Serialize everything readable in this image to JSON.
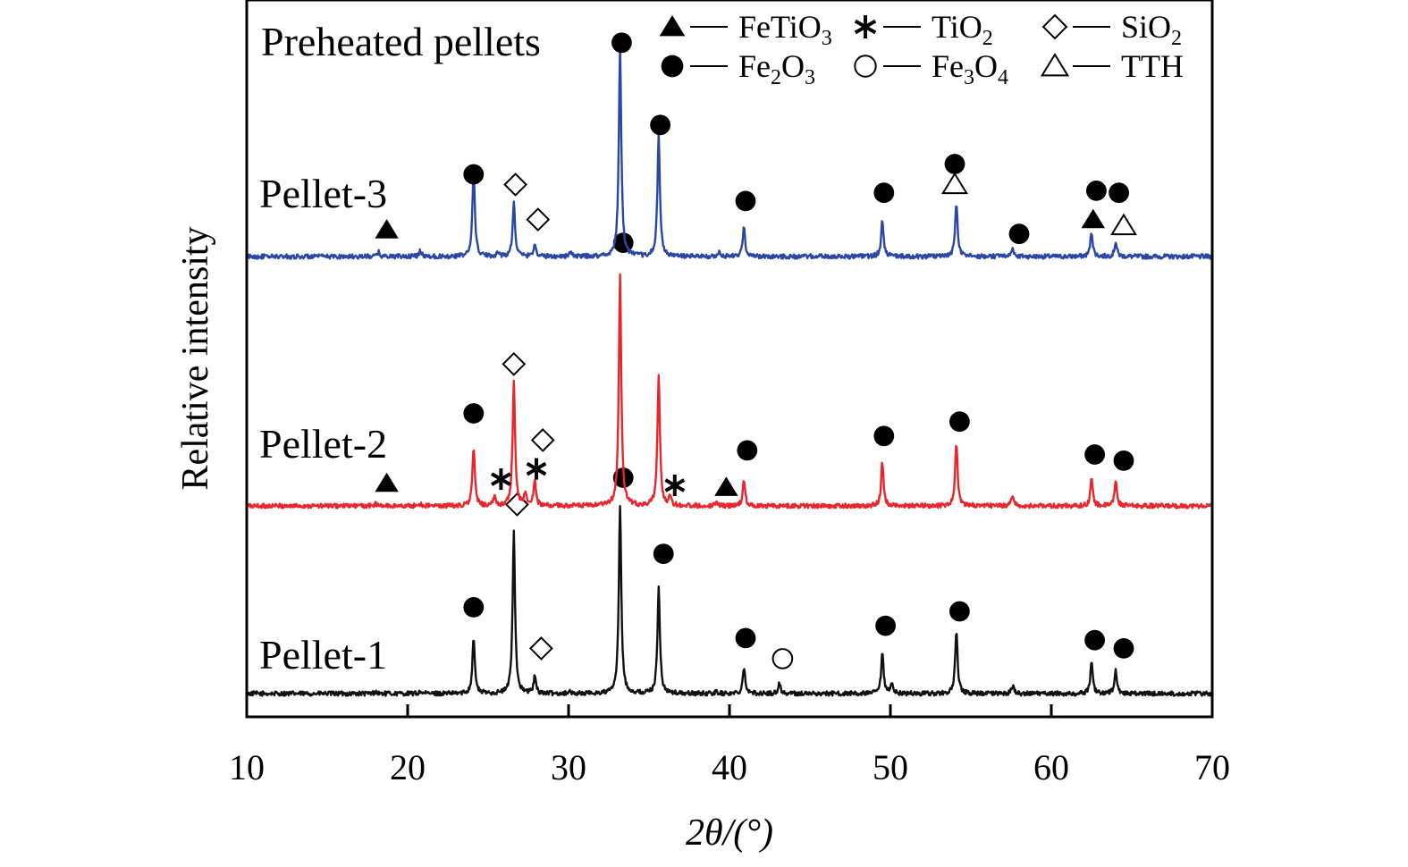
{
  "chart_data": {
    "type": "line",
    "title": "Preheated pellets",
    "xlabel": "2θ/(°)",
    "ylabel": "Relative intensity",
    "xlim": [
      10,
      70
    ],
    "xticks": [
      10,
      20,
      30,
      40,
      50,
      60,
      70
    ],
    "xtick_labels": [
      "10",
      "20",
      "30",
      "40",
      "50",
      "60",
      "70"
    ],
    "y_ticks_shown": false,
    "grid": false,
    "legend_position": "top-right",
    "legend": [
      {
        "marker": "filled-triangle",
        "label": "FeTiO",
        "sub": "3"
      },
      {
        "marker": "asterisk",
        "label": "TiO",
        "sub": "2"
      },
      {
        "marker": "open-diamond",
        "label": "SiO",
        "sub": "2"
      },
      {
        "marker": "filled-circle",
        "label": "Fe",
        "sub": "2",
        "label2": "O",
        "sub2": "3"
      },
      {
        "marker": "open-circle",
        "label": "Fe",
        "sub": "3",
        "label2": "O",
        "sub2": "4"
      },
      {
        "marker": "open-triangle",
        "label": "TTH"
      }
    ],
    "series": [
      {
        "name": "Pellet-1",
        "color": "#111111",
        "baseline": 0.0,
        "peaks": [
          [
            18.0,
            0.01
          ],
          [
            20.8,
            0.01
          ],
          [
            24.1,
            0.27
          ],
          [
            26.6,
            0.79
          ],
          [
            27.9,
            0.08
          ],
          [
            30.0,
            0.01
          ],
          [
            33.2,
            0.92
          ],
          [
            35.6,
            0.52
          ],
          [
            39.2,
            0.01
          ],
          [
            40.9,
            0.13
          ],
          [
            43.1,
            0.05
          ],
          [
            49.5,
            0.19
          ],
          [
            50.1,
            0.05
          ],
          [
            54.1,
            0.3
          ],
          [
            57.6,
            0.04
          ],
          [
            62.5,
            0.15
          ],
          [
            64.0,
            0.11
          ]
        ],
        "markers": [
          {
            "shape": "filled-circle",
            "x": 24.1,
            "y": 0.42
          },
          {
            "shape": "open-diamond",
            "x": 26.8,
            "y": 0.92
          },
          {
            "shape": "open-diamond",
            "x": 28.3,
            "y": 0.22
          },
          {
            "shape": "filled-circle",
            "x": 33.4,
            "y": 1.05
          },
          {
            "shape": "filled-circle",
            "x": 35.9,
            "y": 0.68
          },
          {
            "shape": "filled-circle",
            "x": 41.0,
            "y": 0.27
          },
          {
            "shape": "open-circle",
            "x": 43.3,
            "y": 0.17
          },
          {
            "shape": "filled-circle",
            "x": 49.7,
            "y": 0.33
          },
          {
            "shape": "filled-circle",
            "x": 54.3,
            "y": 0.4
          },
          {
            "shape": "filled-circle",
            "x": 62.7,
            "y": 0.26
          },
          {
            "shape": "filled-circle",
            "x": 64.5,
            "y": 0.22
          }
        ]
      },
      {
        "name": "Pellet-2",
        "color": "#e8262c",
        "baseline": 0.0,
        "peaks": [
          [
            18.0,
            0.01
          ],
          [
            20.8,
            0.01
          ],
          [
            24.1,
            0.28
          ],
          [
            25.4,
            0.04
          ],
          [
            26.6,
            0.6
          ],
          [
            27.3,
            0.06
          ],
          [
            27.9,
            0.12
          ],
          [
            33.2,
            1.12
          ],
          [
            35.6,
            0.64
          ],
          [
            36.3,
            0.04
          ],
          [
            39.2,
            0.02
          ],
          [
            40.9,
            0.12
          ],
          [
            49.5,
            0.21
          ],
          [
            54.1,
            0.31
          ],
          [
            57.6,
            0.05
          ],
          [
            62.5,
            0.13
          ],
          [
            64.0,
            0.12
          ]
        ],
        "markers": [
          {
            "shape": "filled-triangle",
            "x": 18.7,
            "y": 0.11
          },
          {
            "shape": "filled-circle",
            "x": 24.1,
            "y": 0.45
          },
          {
            "shape": "asterisk",
            "x": 25.8,
            "y": 0.13
          },
          {
            "shape": "open-diamond",
            "x": 26.6,
            "y": 0.69
          },
          {
            "shape": "asterisk",
            "x": 28.0,
            "y": 0.18
          },
          {
            "shape": "open-diamond",
            "x": 28.4,
            "y": 0.32
          },
          {
            "shape": "filled-circle",
            "x": 33.4,
            "y": 1.28
          },
          {
            "shape": "asterisk",
            "x": 36.6,
            "y": 0.1
          },
          {
            "shape": "filled-triangle",
            "x": 39.8,
            "y": 0.09
          },
          {
            "shape": "filled-circle",
            "x": 41.1,
            "y": 0.27
          },
          {
            "shape": "filled-circle",
            "x": 49.6,
            "y": 0.34
          },
          {
            "shape": "filled-circle",
            "x": 54.3,
            "y": 0.41
          },
          {
            "shape": "filled-circle",
            "x": 62.7,
            "y": 0.25
          },
          {
            "shape": "filled-circle",
            "x": 64.5,
            "y": 0.22
          }
        ]
      },
      {
        "name": "Pellet-3",
        "color": "#2a47a6",
        "baseline": 0.0,
        "peaks": [
          [
            18.2,
            0.02
          ],
          [
            20.8,
            0.03
          ],
          [
            24.1,
            0.42
          ],
          [
            25.6,
            0.02
          ],
          [
            26.6,
            0.26
          ],
          [
            27.9,
            0.06
          ],
          [
            30.1,
            0.02
          ],
          [
            33.2,
            1.02
          ],
          [
            35.6,
            0.59
          ],
          [
            39.4,
            0.02
          ],
          [
            40.9,
            0.14
          ],
          [
            49.5,
            0.18
          ],
          [
            54.1,
            0.26
          ],
          [
            56.8,
            0.01
          ],
          [
            57.6,
            0.04
          ],
          [
            62.5,
            0.12
          ],
          [
            64.0,
            0.07
          ]
        ],
        "markers": [
          {
            "shape": "filled-triangle",
            "x": 18.7,
            "y": 0.13
          },
          {
            "shape": "filled-circle",
            "x": 24.1,
            "y": 0.4
          },
          {
            "shape": "open-diamond",
            "x": 26.7,
            "y": 0.35
          },
          {
            "shape": "open-diamond",
            "x": 28.1,
            "y": 0.18
          },
          {
            "shape": "filled-circle",
            "x": 33.3,
            "y": 1.04
          },
          {
            "shape": "filled-circle",
            "x": 35.7,
            "y": 0.64
          },
          {
            "shape": "filled-circle",
            "x": 41.0,
            "y": 0.27
          },
          {
            "shape": "filled-circle",
            "x": 49.6,
            "y": 0.31
          },
          {
            "shape": "filled-circle",
            "x": 54.0,
            "y": 0.45
          },
          {
            "shape": "open-triangle",
            "x": 54.0,
            "y": 0.35
          },
          {
            "shape": "filled-circle",
            "x": 58.0,
            "y": 0.11
          },
          {
            "shape": "filled-triangle",
            "x": 62.6,
            "y": 0.18
          },
          {
            "shape": "filled-circle",
            "x": 62.8,
            "y": 0.32
          },
          {
            "shape": "filled-circle",
            "x": 64.2,
            "y": 0.31
          },
          {
            "shape": "open-triangle",
            "x": 64.5,
            "y": 0.15
          }
        ]
      }
    ]
  }
}
